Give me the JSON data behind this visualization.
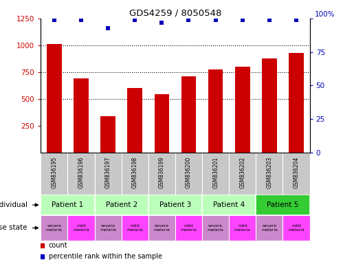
{
  "title": "GDS4259 / 8050548",
  "samples": [
    "GSM836195",
    "GSM836196",
    "GSM836197",
    "GSM836198",
    "GSM836199",
    "GSM836200",
    "GSM836201",
    "GSM836202",
    "GSM836203",
    "GSM836204"
  ],
  "counts": [
    1010,
    690,
    340,
    600,
    540,
    710,
    775,
    800,
    880,
    930
  ],
  "percentiles": [
    99,
    99,
    93,
    99,
    97,
    99,
    99,
    99,
    99,
    99
  ],
  "bar_color": "#cc0000",
  "dot_color": "#0000bb",
  "ylim_left": [
    0,
    1250
  ],
  "ylim_right": [
    0,
    100
  ],
  "yticks_left": [
    250,
    500,
    750,
    1000,
    1250
  ],
  "yticks_right": [
    0,
    25,
    50,
    75,
    100
  ],
  "grid_values": [
    500,
    750,
    1000
  ],
  "sample_row_color": "#c8c8c8",
  "bar_width": 0.55,
  "patient_groups": [
    {
      "label": "Patient 1",
      "start": 0,
      "end": 2,
      "color": "#bbffbb"
    },
    {
      "label": "Patient 2",
      "start": 2,
      "end": 4,
      "color": "#bbffbb"
    },
    {
      "label": "Patient 3",
      "start": 4,
      "end": 6,
      "color": "#bbffbb"
    },
    {
      "label": "Patient 4",
      "start": 6,
      "end": 8,
      "color": "#bbffbb"
    },
    {
      "label": "Patient 5",
      "start": 8,
      "end": 10,
      "color": "#33cc33"
    }
  ],
  "disease_states": [
    "severe",
    "mild",
    "severe",
    "mild",
    "severe",
    "mild",
    "severe",
    "mild",
    "severe",
    "mild"
  ],
  "severe_color": "#cc88cc",
  "mild_color": "#ff44ff",
  "legend_items": [
    {
      "color": "#cc0000",
      "label": "count"
    },
    {
      "color": "#0000bb",
      "label": "percentile rank within the sample"
    }
  ]
}
